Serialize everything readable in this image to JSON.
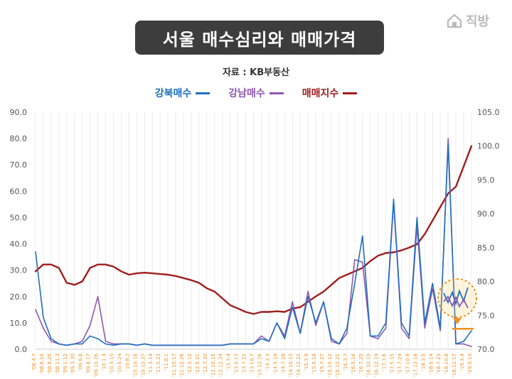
{
  "title": "서울 매수심리와 매매가격",
  "logo_text": "직방",
  "source": "자료 : KB부동산",
  "colors": {
    "gangbuk": "#1f6fbf",
    "gangnam": "#8e57b0",
    "index": "#a01c1c",
    "x_tick": "#f0901e",
    "highlight": "#f0901e"
  },
  "chart_data": {
    "type": "line",
    "title": "서울 매수심리와 매매가격",
    "legend_position": "top",
    "grid": {
      "vertical": true,
      "horizontal": false
    },
    "left_axis": {
      "ylim": [
        0,
        90
      ],
      "ticks": [
        "0.0",
        "10.0",
        "20.0",
        "30.0",
        "40.0",
        "50.0",
        "60.0",
        "70.0",
        "80.0",
        "90.0"
      ]
    },
    "right_axis": {
      "ylim": [
        70,
        105
      ],
      "ticks": [
        "70.0",
        "75.0",
        "80.0",
        "85.0",
        "90.0",
        "95.0",
        "100.0",
        "105.0"
      ]
    },
    "x_tick_labels": [
      "'08.4.7",
      "'08.6.16",
      "'08.8.25",
      "'08.11.3",
      "'09.1.12",
      "'09.3.30",
      "'09.6.8",
      "'09.8.17",
      "'09.10.26",
      "'10.1.4",
      "'10.3.15",
      "'10.5.24",
      "'10.8.2",
      "'10.10.18",
      "'10.12.27",
      "'11.3.14",
      "'11.5.23",
      "'11.8.1",
      "'11.10.17",
      "'11.12.26",
      "'12.3.12",
      "'12.5.21",
      "'12.7.30",
      "'12.10.15",
      "'12.12.24",
      "'13.3.4",
      "'13.5.13",
      "'13.7.22",
      "'13.10.7",
      "'13.12.16",
      "'14.3.3",
      "'14.5.19",
      "'14.7.28",
      "'14.10.13",
      "'14.12.22",
      "'15.3.9",
      "'15.5.18",
      "'15.7.27",
      "'15.10.12",
      "'15.12.21",
      "'16.3.7",
      "'16.5.16",
      "'16.7.25",
      "'16.10.10",
      "'16.12.19",
      "'17.3.6",
      "'17.5.15",
      "'17.7.24",
      "'17.10.9",
      "'17.12.18",
      "'18.3.5",
      "'18.5.14",
      "'18.7.23",
      "'18.10.8",
      "'18.12.17",
      "'19.3.4",
      "'19.5.13"
    ],
    "series": [
      {
        "name": "강북매수",
        "axis": "left",
        "values": [
          37,
          12,
          4,
          2,
          1.5,
          2,
          2,
          5,
          4,
          2,
          1.5,
          2,
          2,
          1.5,
          2,
          1.5,
          1.5,
          1.5,
          1.5,
          1.5,
          1.5,
          1.5,
          1.5,
          1.5,
          1.5,
          2,
          2,
          2,
          2,
          4,
          3,
          10,
          4,
          16,
          6,
          20,
          10,
          18,
          4,
          2,
          8,
          25,
          43,
          5,
          5,
          10,
          57,
          10,
          5,
          50,
          10,
          25,
          8,
          78,
          2,
          3,
          7
        ]
      },
      {
        "name": "강남매수",
        "axis": "left",
        "values": [
          15,
          8,
          3,
          2,
          1.5,
          2,
          3,
          9,
          20,
          3,
          2,
          2,
          2,
          1.5,
          2,
          1.5,
          1.5,
          1.5,
          1.5,
          1.5,
          1.5,
          1.5,
          1.5,
          1.5,
          1.5,
          2,
          2,
          2,
          2,
          5,
          3,
          10,
          5,
          18,
          6,
          22,
          9,
          18,
          3,
          2,
          6,
          34,
          33,
          5,
          4,
          8,
          56,
          8,
          4,
          47,
          8,
          23,
          7,
          80,
          2,
          2,
          1
        ]
      },
      {
        "name": "매매지수",
        "axis": "right",
        "values": [
          81.5,
          82.5,
          82.5,
          82,
          79.8,
          79.5,
          80,
          82,
          82.5,
          82.5,
          82.2,
          81.5,
          81,
          81.2,
          81.3,
          81.2,
          81.1,
          81,
          80.8,
          80.5,
          80.2,
          79.8,
          79,
          78.5,
          77.5,
          76.5,
          76,
          75.5,
          75.2,
          75.5,
          75.5,
          75.6,
          75.5,
          76,
          76.2,
          77,
          77.8,
          78.5,
          79.5,
          80.5,
          81,
          81.5,
          82,
          83,
          83.8,
          84.2,
          84.3,
          84.6,
          85,
          85.5,
          87,
          89,
          91,
          93,
          94,
          97,
          100
        ]
      }
    ],
    "annotation": "highlight circle around the most recent weeks ('18.12 – '19.5)"
  }
}
